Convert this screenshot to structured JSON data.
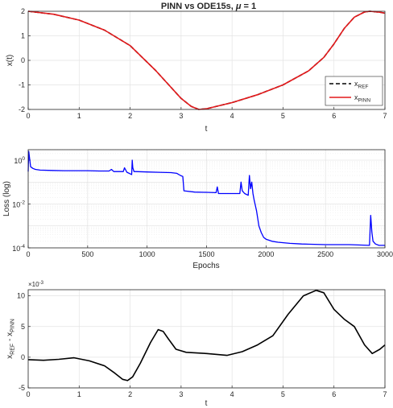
{
  "figure": {
    "title_main": "PINN vs ODE15s, ",
    "title_mu": "μ",
    "title_end": " = 1"
  },
  "chart_data": [
    {
      "type": "line",
      "title": "PINN vs ODE15s, μ = 1",
      "xlabel": "t",
      "ylabel": "x(t)",
      "xlim": [
        0,
        7
      ],
      "ylim": [
        -2,
        2
      ],
      "xticks": [
        0,
        1,
        2,
        3,
        4,
        5,
        6,
        7
      ],
      "yticks": [
        -2,
        -1,
        0,
        1,
        2
      ],
      "grid": true,
      "legend_position": "bottom-right",
      "series": [
        {
          "name": "x",
          "name_sub": "REF",
          "color": "#000000",
          "style": "dashed",
          "x": [
            0,
            0.5,
            1,
            1.5,
            2,
            2.5,
            3,
            3.2,
            3.35,
            3.5,
            4,
            4.5,
            5,
            5.5,
            5.8,
            6,
            6.2,
            6.4,
            6.6,
            6.7,
            6.9,
            7
          ],
          "y": [
            2,
            1.88,
            1.64,
            1.23,
            0.6,
            -0.41,
            -1.55,
            -1.88,
            -2.0,
            -1.97,
            -1.72,
            -1.4,
            -1.0,
            -0.43,
            0.12,
            0.67,
            1.3,
            1.76,
            1.97,
            2.0,
            1.96,
            1.92
          ]
        },
        {
          "name": "x",
          "name_sub": "PINN",
          "color": "#e41a1c",
          "style": "solid",
          "x": [
            0,
            0.5,
            1,
            1.5,
            2,
            2.5,
            3,
            3.2,
            3.35,
            3.5,
            4,
            4.5,
            5,
            5.5,
            5.8,
            6,
            6.2,
            6.4,
            6.6,
            6.7,
            6.9,
            7
          ],
          "y": [
            2,
            1.88,
            1.64,
            1.23,
            0.6,
            -0.41,
            -1.55,
            -1.88,
            -2.0,
            -1.97,
            -1.72,
            -1.4,
            -1.0,
            -0.43,
            0.12,
            0.67,
            1.3,
            1.76,
            1.97,
            2.0,
            1.96,
            1.92
          ]
        }
      ]
    },
    {
      "type": "line",
      "xlabel": "Epochs",
      "ylabel": "Loss (log)",
      "xlim": [
        0,
        3000
      ],
      "ylim": [
        0.0001,
        3
      ],
      "yscale": "log",
      "xticks": [
        0,
        500,
        1000,
        1500,
        2000,
        2500,
        3000
      ],
      "yticks": [
        {
          "value": 1,
          "base": "10",
          "exp": "0"
        },
        {
          "value": 0.01,
          "base": "10",
          "exp": "-2"
        },
        {
          "value": 0.0001,
          "base": "10",
          "exp": "-4"
        }
      ],
      "grid": true,
      "series": [
        {
          "color": "#0000ff",
          "x": [
            0,
            5,
            20,
            40,
            60,
            100,
            200,
            300,
            400,
            500,
            600,
            680,
            700,
            720,
            800,
            810,
            830,
            850,
            870,
            875,
            880,
            890,
            900,
            1000,
            1100,
            1200,
            1250,
            1280,
            1300,
            1310,
            1400,
            1500,
            1580,
            1590,
            1600,
            1620,
            1700,
            1780,
            1790,
            1800,
            1820,
            1850,
            1860,
            1870,
            1880,
            1890,
            1900,
            1920,
            1940,
            1960,
            1980,
            2000,
            2050,
            2100,
            2200,
            2300,
            2500,
            2700,
            2870,
            2880,
            2890,
            2900,
            2920,
            2950,
            3000
          ],
          "y": [
            0.3,
            2.5,
            0.5,
            0.42,
            0.38,
            0.35,
            0.34,
            0.33,
            0.33,
            0.33,
            0.32,
            0.32,
            0.38,
            0.3,
            0.3,
            0.45,
            0.28,
            0.25,
            0.22,
            1.0,
            0.45,
            0.3,
            0.3,
            0.29,
            0.28,
            0.27,
            0.25,
            0.2,
            0.18,
            0.04,
            0.035,
            0.034,
            0.033,
            0.06,
            0.03,
            0.03,
            0.03,
            0.03,
            0.1,
            0.04,
            0.03,
            0.025,
            0.2,
            0.05,
            0.1,
            0.03,
            0.015,
            0.005,
            0.001,
            0.0005,
            0.0003,
            0.00025,
            0.0002,
            0.00018,
            0.00016,
            0.00015,
            0.00014,
            0.00014,
            0.00013,
            0.003,
            0.0005,
            0.0002,
            0.00015,
            0.00013,
            0.00013
          ]
        }
      ]
    },
    {
      "type": "line",
      "xlabel": "t",
      "ylabel_main": "x",
      "ylabel_sub1": "REF",
      "ylabel_mid": " - x",
      "ylabel_sub2": "PINN",
      "exponent_base": "×10",
      "exponent_power": "-3",
      "xlim": [
        0,
        7
      ],
      "ylim": [
        -5,
        11
      ],
      "xticks": [
        0,
        1,
        2,
        3,
        4,
        5,
        6,
        7
      ],
      "yticks": [
        -5,
        0,
        5,
        10
      ],
      "grid": true,
      "series": [
        {
          "color": "#000000",
          "x": [
            0,
            0.3,
            0.6,
            0.9,
            1.2,
            1.5,
            1.7,
            1.85,
            1.95,
            2.05,
            2.2,
            2.4,
            2.55,
            2.65,
            2.75,
            2.9,
            3.1,
            3.5,
            3.9,
            4.2,
            4.5,
            4.8,
            5.1,
            5.4,
            5.65,
            5.8,
            6.0,
            6.2,
            6.4,
            6.6,
            6.75,
            6.9,
            7.0
          ],
          "y": [
            -0.4,
            -0.5,
            -0.35,
            -0.1,
            -0.6,
            -1.4,
            -2.6,
            -3.6,
            -3.8,
            -3.2,
            -1.0,
            2.4,
            4.5,
            4.2,
            3.0,
            1.3,
            0.8,
            0.6,
            0.3,
            0.9,
            2.0,
            3.5,
            7.0,
            10.0,
            10.9,
            10.5,
            7.8,
            6.2,
            5.0,
            2.0,
            0.6,
            1.3,
            2.0
          ]
        }
      ]
    }
  ]
}
